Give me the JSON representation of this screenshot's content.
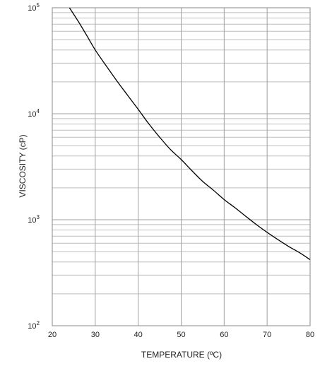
{
  "chart_data": {
    "type": "line",
    "title": "",
    "xlabel": "TEMPERATURE (ºC)",
    "ylabel": "VISCOSITY (cP)",
    "xlim": [
      20,
      80
    ],
    "ylim": [
      100,
      100000
    ],
    "yscale": "log",
    "grid": true,
    "x_ticks": [
      20,
      30,
      40,
      50,
      60,
      70,
      80
    ],
    "y_ticks": [
      {
        "value": 100,
        "base": "10",
        "exp": "2"
      },
      {
        "value": 1000,
        "base": "10",
        "exp": "3"
      },
      {
        "value": 10000,
        "base": "10",
        "exp": "4"
      },
      {
        "value": 100000,
        "base": "10",
        "exp": "5"
      }
    ],
    "series": [
      {
        "name": "",
        "x": [
          24,
          26,
          28,
          30,
          32.5,
          35,
          37.5,
          40,
          42.5,
          45,
          47.5,
          50,
          52.5,
          55,
          57.5,
          60,
          62.5,
          65,
          67.5,
          70,
          72.5,
          75,
          77.5,
          80
        ],
        "y": [
          100000,
          75000,
          55000,
          40000,
          28500,
          20500,
          15000,
          11000,
          8000,
          6000,
          4600,
          3700,
          2900,
          2300,
          1900,
          1550,
          1300,
          1080,
          900,
          760,
          650,
          560,
          490,
          420
        ]
      }
    ]
  }
}
